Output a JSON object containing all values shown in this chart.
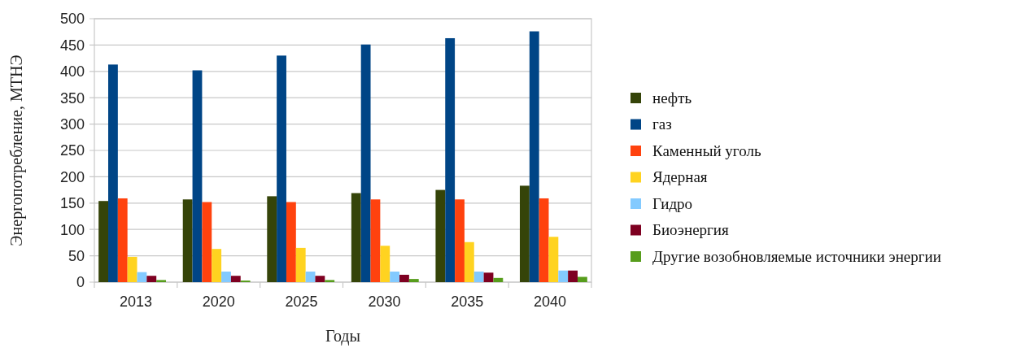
{
  "chart_data": {
    "type": "bar",
    "xlabel": "Годы",
    "ylabel": "Энергопотребление, МТНЭ",
    "categories": [
      "2013",
      "2020",
      "2025",
      "2030",
      "2035",
      "2040"
    ],
    "series": [
      {
        "name": "нефть",
        "color": "#354409",
        "values": [
          154,
          157,
          163,
          169,
          175,
          183
        ]
      },
      {
        "name": "газ",
        "color": "#004586",
        "values": [
          413,
          402,
          430,
          451,
          463,
          476
        ]
      },
      {
        "name": "Каменный уголь",
        "color": "#ff420e",
        "values": [
          159,
          152,
          152,
          157,
          157,
          159
        ]
      },
      {
        "name": "Ядерная",
        "color": "#ffd320",
        "values": [
          48,
          63,
          65,
          69,
          76,
          86
        ]
      },
      {
        "name": "Гидро",
        "color": "#83caff",
        "values": [
          19,
          20,
          20,
          20,
          20,
          22
        ]
      },
      {
        "name": "Биоэнергия",
        "color": "#7e0021",
        "values": [
          12,
          12,
          12,
          14,
          18,
          22
        ]
      },
      {
        "name": "Другие возобновляемые источники энергии",
        "color": "#579d1c",
        "values": [
          4,
          3,
          4,
          6,
          8,
          10
        ]
      }
    ],
    "ylim": [
      0,
      500
    ],
    "yticks": [
      0,
      50,
      100,
      150,
      200,
      250,
      300,
      350,
      400,
      450,
      500
    ],
    "grid": "y",
    "legend": "right"
  }
}
